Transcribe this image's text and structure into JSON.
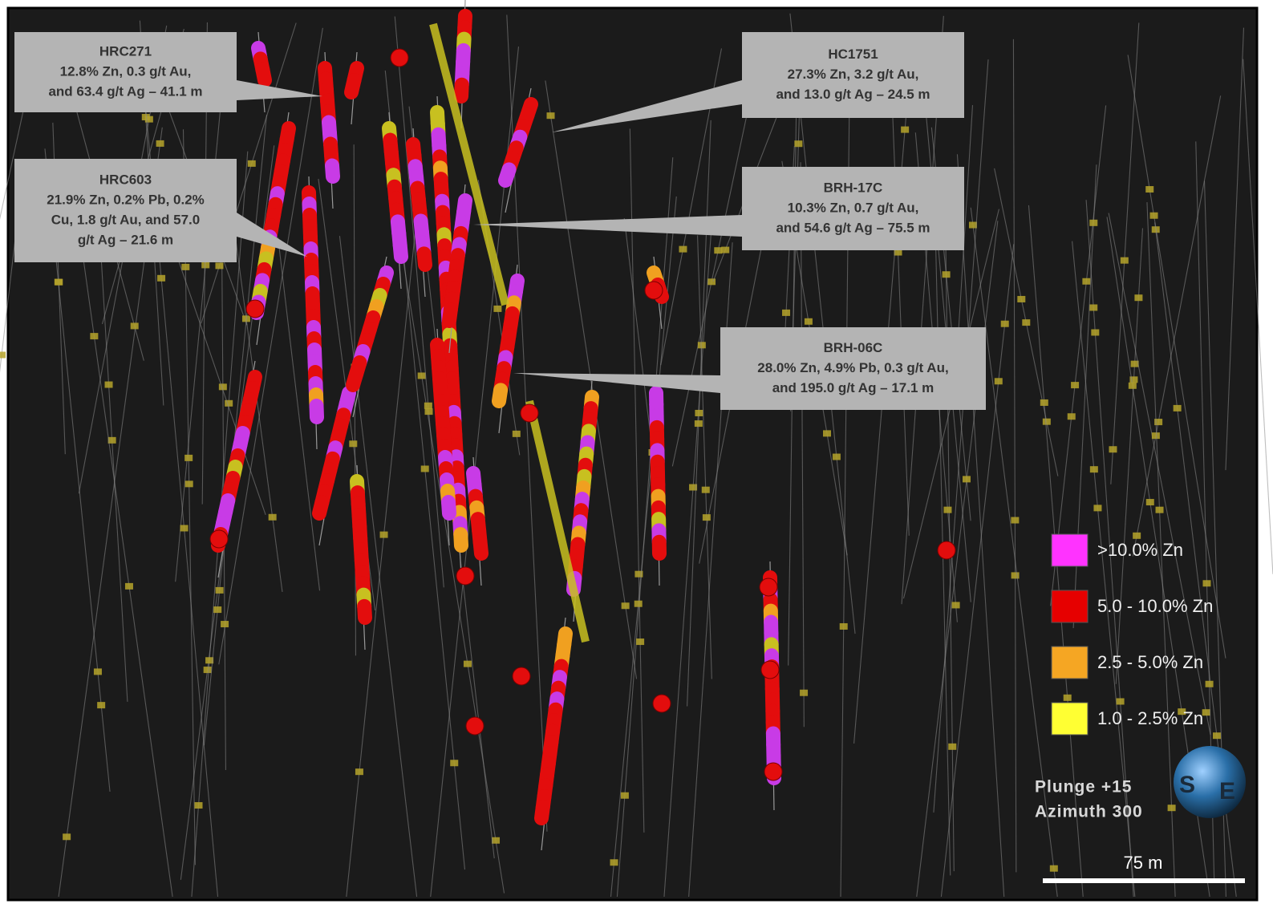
{
  "callouts": [
    {
      "title": "HRC271",
      "lines": [
        "12.8% Zn, 0.3 g/t Au,",
        "and 63.4 g/t Ag – 41.1 m"
      ]
    },
    {
      "title": "HRC603",
      "lines": [
        "21.9% Zn, 0.2% Pb, 0.2%",
        "Cu, 1.8 g/t Au, and 57.0",
        "g/t Ag – 21.6 m"
      ]
    },
    {
      "title": "HC1751",
      "lines": [
        "27.3% Zn, 3.2 g/t Au,",
        "and 13.0 g/t Ag – 24.5 m"
      ]
    },
    {
      "title": "BRH-17C",
      "lines": [
        "10.3% Zn, 0.7 g/t Au,",
        "and 54.6 g/t Ag – 75.5 m"
      ]
    },
    {
      "title": "BRH-06C",
      "lines": [
        "28.0% Zn, 4.9% Pb, 0.3 g/t Au,",
        "and 195.0 g/t Ag – 17.1 m"
      ]
    }
  ],
  "legend": [
    {
      "label": ">10.0% Zn",
      "color": "#ff33ff"
    },
    {
      "label": "5.0 - 10.0% Zn",
      "color": "#e60000"
    },
    {
      "label": "2.5 - 5.0% Zn",
      "color": "#f5a623"
    },
    {
      "label": "1.0 - 2.5% Zn",
      "color": "#ffff33"
    }
  ],
  "view": {
    "plunge": "Plunge +15",
    "azimuth": "Azimuth 300"
  },
  "logo": {
    "left": "S",
    "right": "E"
  },
  "scale_bar": "75 m"
}
